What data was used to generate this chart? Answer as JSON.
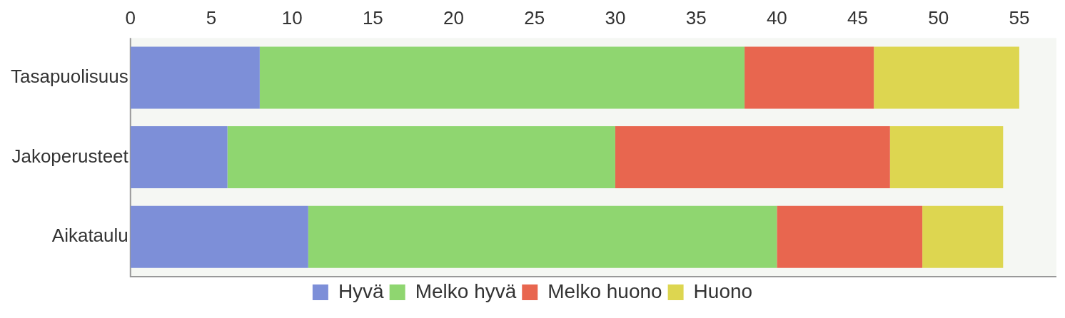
{
  "chart_data": {
    "type": "bar",
    "orientation": "horizontal",
    "stacked": true,
    "categories": [
      "Tasapuolisuus",
      "Jakoperusteet",
      "Aikataulu"
    ],
    "series": [
      {
        "name": "Hyvä",
        "color": "#7d8fd8",
        "values": [
          8,
          6,
          11
        ]
      },
      {
        "name": "Melko hyvä",
        "color": "#8fd670",
        "values": [
          30,
          24,
          29
        ]
      },
      {
        "name": "Melko huono",
        "color": "#e8664f",
        "values": [
          8,
          17,
          9
        ]
      },
      {
        "name": "Huono",
        "color": "#ddd650",
        "values": [
          9,
          7,
          5
        ]
      }
    ],
    "xlim": [
      0,
      57.3
    ],
    "xticks": [
      0,
      5,
      10,
      15,
      20,
      25,
      30,
      35,
      40,
      45,
      50,
      55
    ],
    "grid": false,
    "legend": "bottom"
  }
}
